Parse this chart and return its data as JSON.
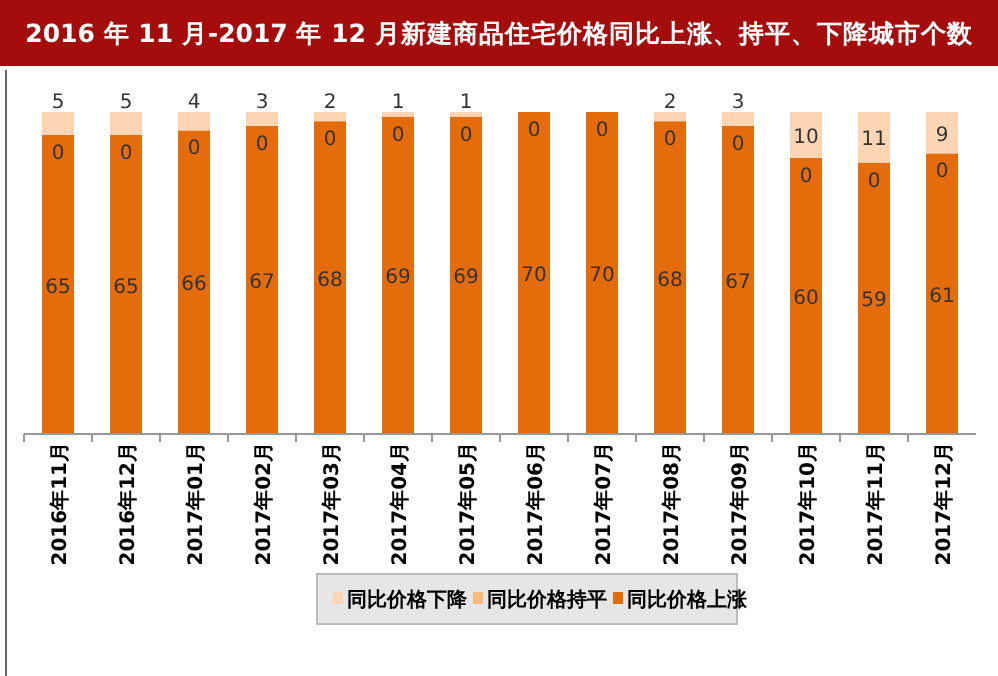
{
  "chart_data": {
    "type": "bar",
    "title": "2016 年 11 月-2017 年 12 月新建商品住宅价格同比上涨、持平、下降城市个数",
    "categories": [
      "2016年11月",
      "2016年12月",
      "2017年01月",
      "2017年02月",
      "2017年03月",
      "2017年04月",
      "2017年05月",
      "2017年06月",
      "2017年07月",
      "2017年08月",
      "2017年09月",
      "2017年10月",
      "2017年11月",
      "2017年12月"
    ],
    "stacked": true,
    "ylim": [
      0,
      70
    ],
    "tick_labels": "x",
    "legend": "bottom",
    "grid": false,
    "series": [
      {
        "name": "同比价格上涨",
        "color": "#e46c0a",
        "values": [
          65,
          65,
          66,
          67,
          68,
          69,
          69,
          70,
          70,
          68,
          67,
          60,
          59,
          61
        ],
        "value_labels": [
          "65",
          "65",
          "66",
          "67",
          "68",
          "69",
          "69",
          "70",
          "70",
          "68",
          "67",
          "60",
          "59",
          "61"
        ]
      },
      {
        "name": "同比价格持平",
        "color": "#f9b97a",
        "values": [
          0,
          0,
          0,
          0,
          0,
          0,
          0,
          0,
          0,
          0,
          0,
          0,
          0,
          0
        ],
        "value_labels": [
          "0",
          "0",
          "0",
          "0",
          "0",
          "0",
          "0",
          "0",
          "0",
          "0",
          "0",
          "0",
          "0",
          "0"
        ]
      },
      {
        "name": "同比价格下降",
        "color": "#fcd5b4",
        "values": [
          5,
          5,
          4,
          3,
          2,
          1,
          1,
          0,
          0,
          2,
          3,
          10,
          11,
          9
        ],
        "value_labels": [
          "5",
          "5",
          "4",
          "3",
          "2",
          "1",
          "1",
          null,
          null,
          "2",
          "3",
          "10",
          "11",
          "9"
        ]
      }
    ]
  }
}
